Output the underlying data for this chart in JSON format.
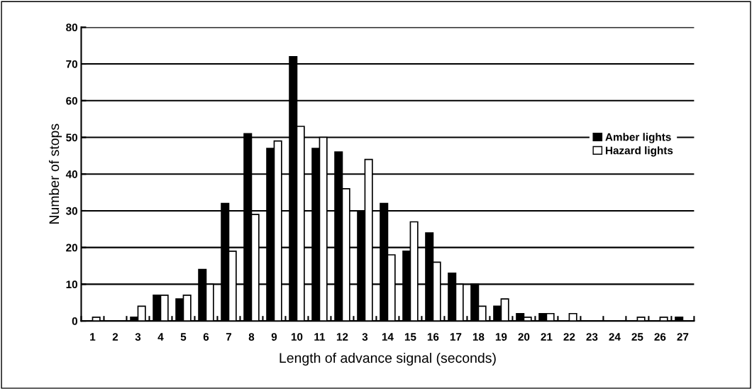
{
  "chart_data": {
    "type": "bar",
    "xlabel": "Length of advance signal (seconds)",
    "ylabel": "Number of stops",
    "categories": [
      "1",
      "2",
      "3",
      "4",
      "5",
      "6",
      "7",
      "8",
      "9",
      "10",
      "11",
      "12",
      "3",
      "14",
      "15",
      "16",
      "17",
      "18",
      "19",
      "20",
      "21",
      "22",
      "23",
      "24",
      "25",
      "26",
      "27"
    ],
    "series": [
      {
        "name": "Amber lights",
        "color": "#000000",
        "values": [
          0,
          0,
          1,
          7,
          6,
          14,
          32,
          51,
          47,
          72,
          47,
          46,
          30,
          32,
          19,
          24,
          13,
          10,
          4,
          2,
          2,
          0,
          0,
          0,
          0,
          0,
          1
        ]
      },
      {
        "name": "Hazard lights",
        "color": "#ffffff",
        "values": [
          1,
          0,
          4,
          7,
          7,
          10,
          19,
          29,
          49,
          53,
          50,
          36,
          44,
          18,
          27,
          16,
          10,
          4,
          6,
          1,
          2,
          2,
          0,
          0,
          1,
          1,
          0
        ]
      }
    ],
    "ylim": [
      0,
      80
    ],
    "yticks": [
      0,
      10,
      20,
      30,
      40,
      50,
      60,
      70,
      80
    ],
    "grid": "y",
    "legend": "center right"
  }
}
